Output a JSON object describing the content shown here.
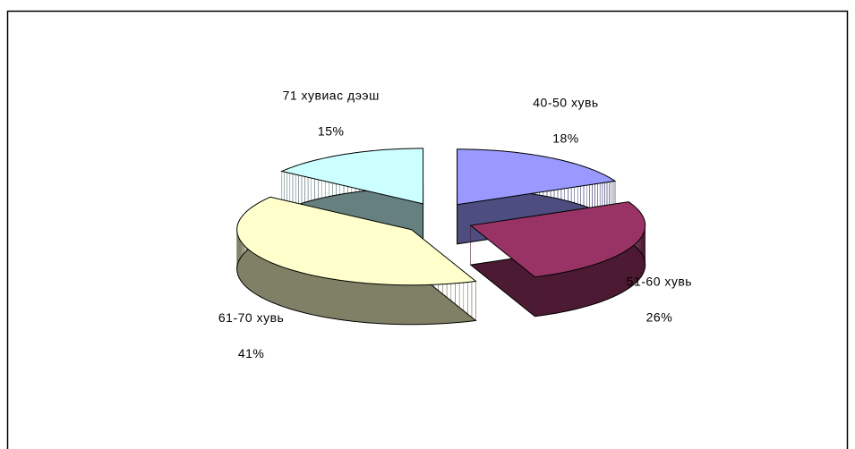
{
  "chart_data": {
    "type": "pie",
    "categories": [
      "40-50 хувь",
      "51-60 хувь",
      "61-70 хувь",
      "71 хувиас дээш"
    ],
    "values": [
      18,
      26,
      41,
      15
    ],
    "value_labels": [
      "18%",
      "26%",
      "41%",
      "15%"
    ],
    "colors": [
      "#9999ff",
      "#993366",
      "#ffffcc",
      "#ccffff"
    ]
  }
}
